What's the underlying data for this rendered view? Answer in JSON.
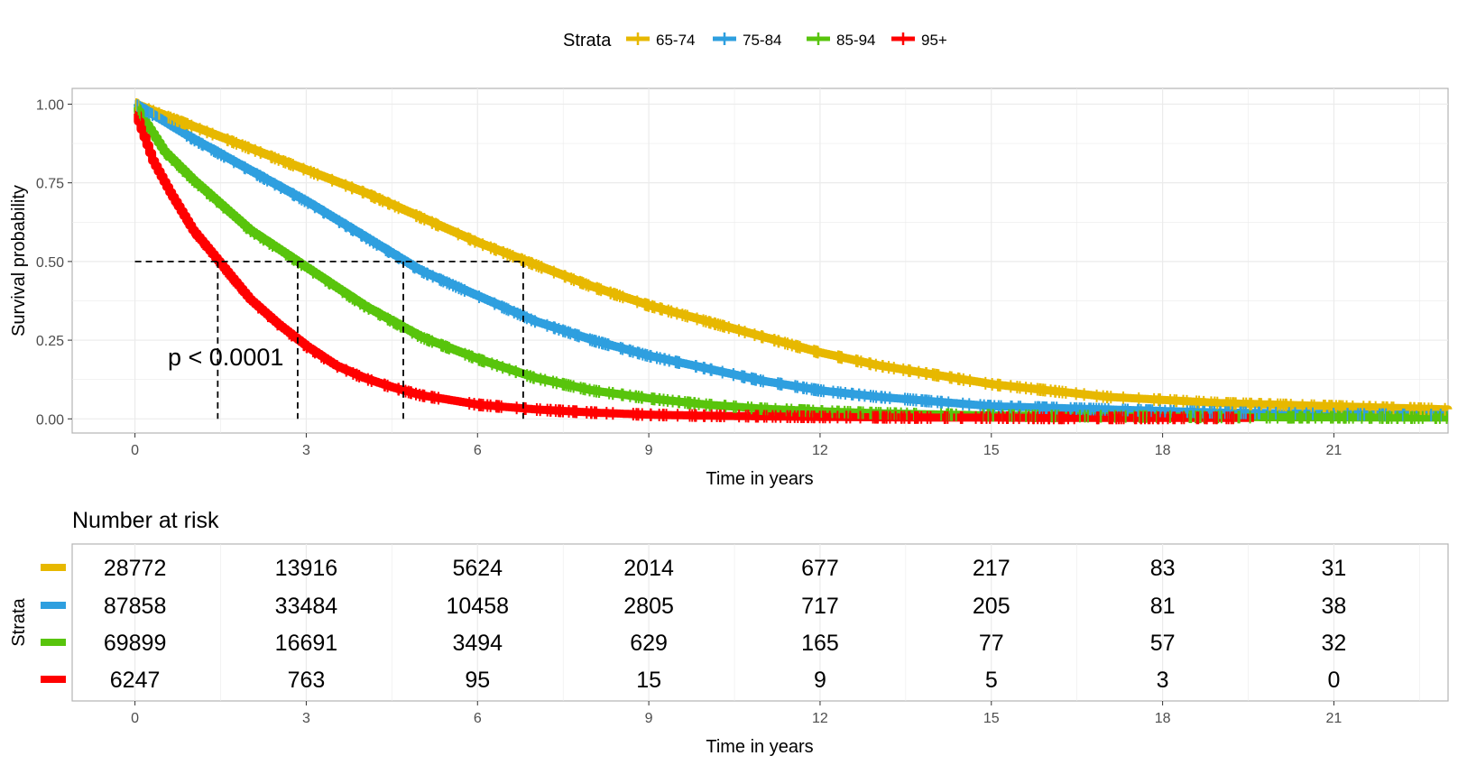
{
  "legend": {
    "title": "Strata",
    "placement": "top"
  },
  "chart_data": {
    "type": "line",
    "subtype": "kaplan-meier",
    "xlabel": "Time in years",
    "ylabel": "Survival probability",
    "xlim": [
      -1.1,
      23
    ],
    "ylim": [
      -0.045,
      1.05
    ],
    "x_ticks": [
      0,
      3,
      6,
      9,
      12,
      15,
      18,
      21
    ],
    "x_tick_labels": [
      "0",
      "3",
      "6",
      "9",
      "12",
      "15",
      "18",
      "21"
    ],
    "y_ticks": [
      0,
      0.25,
      0.5,
      0.75,
      1.0
    ],
    "y_tick_labels": [
      "0.00",
      "0.25",
      "0.50",
      "0.75",
      "1.00"
    ],
    "grid": true,
    "annotation": "p < 0.0001",
    "median_line_y": 0.5,
    "series": [
      {
        "name": "65-74",
        "color": "#E7B800",
        "median": 6.8,
        "points": [
          [
            0,
            1.0
          ],
          [
            1,
            0.93
          ],
          [
            2,
            0.86
          ],
          [
            3,
            0.79
          ],
          [
            4,
            0.72
          ],
          [
            5,
            0.64
          ],
          [
            6,
            0.56
          ],
          [
            7,
            0.49
          ],
          [
            8,
            0.42
          ],
          [
            9,
            0.36
          ],
          [
            10,
            0.31
          ],
          [
            11,
            0.26
          ],
          [
            12,
            0.21
          ],
          [
            13,
            0.17
          ],
          [
            14,
            0.14
          ],
          [
            15,
            0.11
          ],
          [
            16,
            0.09
          ],
          [
            17,
            0.07
          ],
          [
            18,
            0.06
          ],
          [
            19,
            0.05
          ],
          [
            20,
            0.045
          ],
          [
            21,
            0.04
          ],
          [
            22,
            0.035
          ],
          [
            23,
            0.03
          ]
        ]
      },
      {
        "name": "75-84",
        "color": "#2E9FDF",
        "median": 4.7,
        "points": [
          [
            0,
            1.0
          ],
          [
            1,
            0.89
          ],
          [
            2,
            0.79
          ],
          [
            3,
            0.69
          ],
          [
            4,
            0.58
          ],
          [
            5,
            0.47
          ],
          [
            6,
            0.39
          ],
          [
            7,
            0.31
          ],
          [
            8,
            0.25
          ],
          [
            9,
            0.2
          ],
          [
            10,
            0.16
          ],
          [
            11,
            0.12
          ],
          [
            12,
            0.09
          ],
          [
            13,
            0.07
          ],
          [
            14,
            0.055
          ],
          [
            15,
            0.04
          ],
          [
            16,
            0.035
          ],
          [
            17,
            0.03
          ],
          [
            18,
            0.025
          ],
          [
            19,
            0.02
          ],
          [
            20,
            0.018
          ],
          [
            21,
            0.015
          ],
          [
            22,
            0.013
          ],
          [
            23,
            0.012
          ]
        ]
      },
      {
        "name": "85-94",
        "color": "#58C40C",
        "median": 2.85,
        "points": [
          [
            0,
            0.99
          ],
          [
            0.5,
            0.85
          ],
          [
            1,
            0.76
          ],
          [
            2,
            0.6
          ],
          [
            3,
            0.48
          ],
          [
            4,
            0.36
          ],
          [
            5,
            0.26
          ],
          [
            6,
            0.19
          ],
          [
            7,
            0.13
          ],
          [
            8,
            0.09
          ],
          [
            9,
            0.065
          ],
          [
            10,
            0.045
          ],
          [
            11,
            0.032
          ],
          [
            12,
            0.024
          ],
          [
            13,
            0.018
          ],
          [
            14,
            0.014
          ],
          [
            15,
            0.011
          ],
          [
            16,
            0.009
          ],
          [
            17,
            0.008
          ],
          [
            18,
            0.007
          ],
          [
            19,
            0.006
          ],
          [
            20,
            0.005
          ],
          [
            21,
            0.005
          ],
          [
            22,
            0.004
          ],
          [
            23,
            0.004
          ]
        ]
      },
      {
        "name": "95+",
        "color": "#FF0000",
        "median": 1.45,
        "points": [
          [
            0,
            0.97
          ],
          [
            0.3,
            0.82
          ],
          [
            0.6,
            0.72
          ],
          [
            1,
            0.6
          ],
          [
            1.5,
            0.49
          ],
          [
            2,
            0.38
          ],
          [
            2.5,
            0.3
          ],
          [
            3,
            0.23
          ],
          [
            3.5,
            0.17
          ],
          [
            4,
            0.13
          ],
          [
            4.5,
            0.1
          ],
          [
            5,
            0.075
          ],
          [
            6,
            0.045
          ],
          [
            7,
            0.03
          ],
          [
            8,
            0.02
          ],
          [
            9,
            0.013
          ],
          [
            10,
            0.01
          ],
          [
            11,
            0.008
          ],
          [
            12,
            0.006
          ],
          [
            13,
            0.005
          ],
          [
            14,
            0.004
          ],
          [
            15,
            0.004
          ],
          [
            16,
            0.003
          ],
          [
            17,
            0.003
          ],
          [
            18,
            0.003
          ],
          [
            19,
            0.003
          ],
          [
            19.6,
            0.003
          ]
        ]
      }
    ]
  },
  "risk_table": {
    "title": "Number at risk",
    "ylabel": "Strata",
    "xlabel": "Time in years",
    "times": [
      0,
      3,
      6,
      9,
      12,
      15,
      18,
      21
    ],
    "rows": [
      {
        "name": "65-74",
        "color": "#E7B800",
        "values": [
          "28772",
          "13916",
          "5624",
          "2014",
          "677",
          "217",
          "83",
          "31"
        ]
      },
      {
        "name": "75-84",
        "color": "#2E9FDF",
        "values": [
          "87858",
          "33484",
          "10458",
          "2805",
          "717",
          "205",
          "81",
          "38"
        ]
      },
      {
        "name": "85-94",
        "color": "#58C40C",
        "values": [
          "69899",
          "16691",
          "3494",
          "629",
          "165",
          "77",
          "57",
          "32"
        ]
      },
      {
        "name": "95+",
        "color": "#FF0000",
        "values": [
          "6247",
          "763",
          "95",
          "15",
          "9",
          "5",
          "3",
          "0"
        ]
      }
    ]
  }
}
